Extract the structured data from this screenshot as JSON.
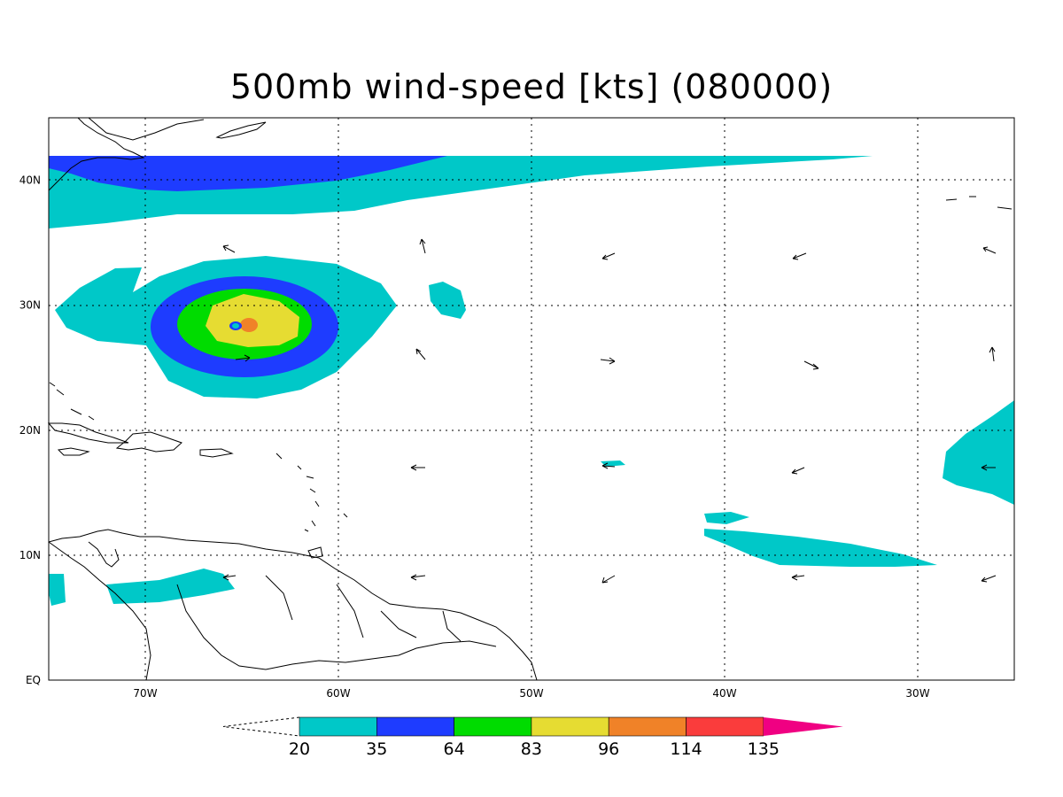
{
  "title": "500mb wind-speed [kts] (080000)",
  "map": {
    "lon_range": [
      -75,
      -25
    ],
    "lat_range": [
      0,
      45
    ],
    "x_ticks": [
      {
        "lon": -70,
        "label": "70W"
      },
      {
        "lon": -60,
        "label": "60W"
      },
      {
        "lon": -50,
        "label": "50W"
      },
      {
        "lon": -40,
        "label": "40W"
      },
      {
        "lon": -30,
        "label": "30W"
      }
    ],
    "y_ticks": [
      {
        "lat": 0,
        "label": "EQ"
      },
      {
        "lat": 10,
        "label": "10N"
      },
      {
        "lat": 20,
        "label": "20N"
      },
      {
        "lat": 30,
        "label": "30N"
      },
      {
        "lat": 40,
        "label": "40N"
      }
    ],
    "grid": true
  },
  "colorbar": {
    "levels": [
      "20",
      "35",
      "64",
      "83",
      "96",
      "114",
      "135"
    ],
    "colors": [
      "#00c8c8",
      "#1e3cff",
      "#00dc00",
      "#e6dc32",
      "#f08228",
      "#fa3c3c",
      "#f00082"
    ],
    "extends": "both"
  }
}
